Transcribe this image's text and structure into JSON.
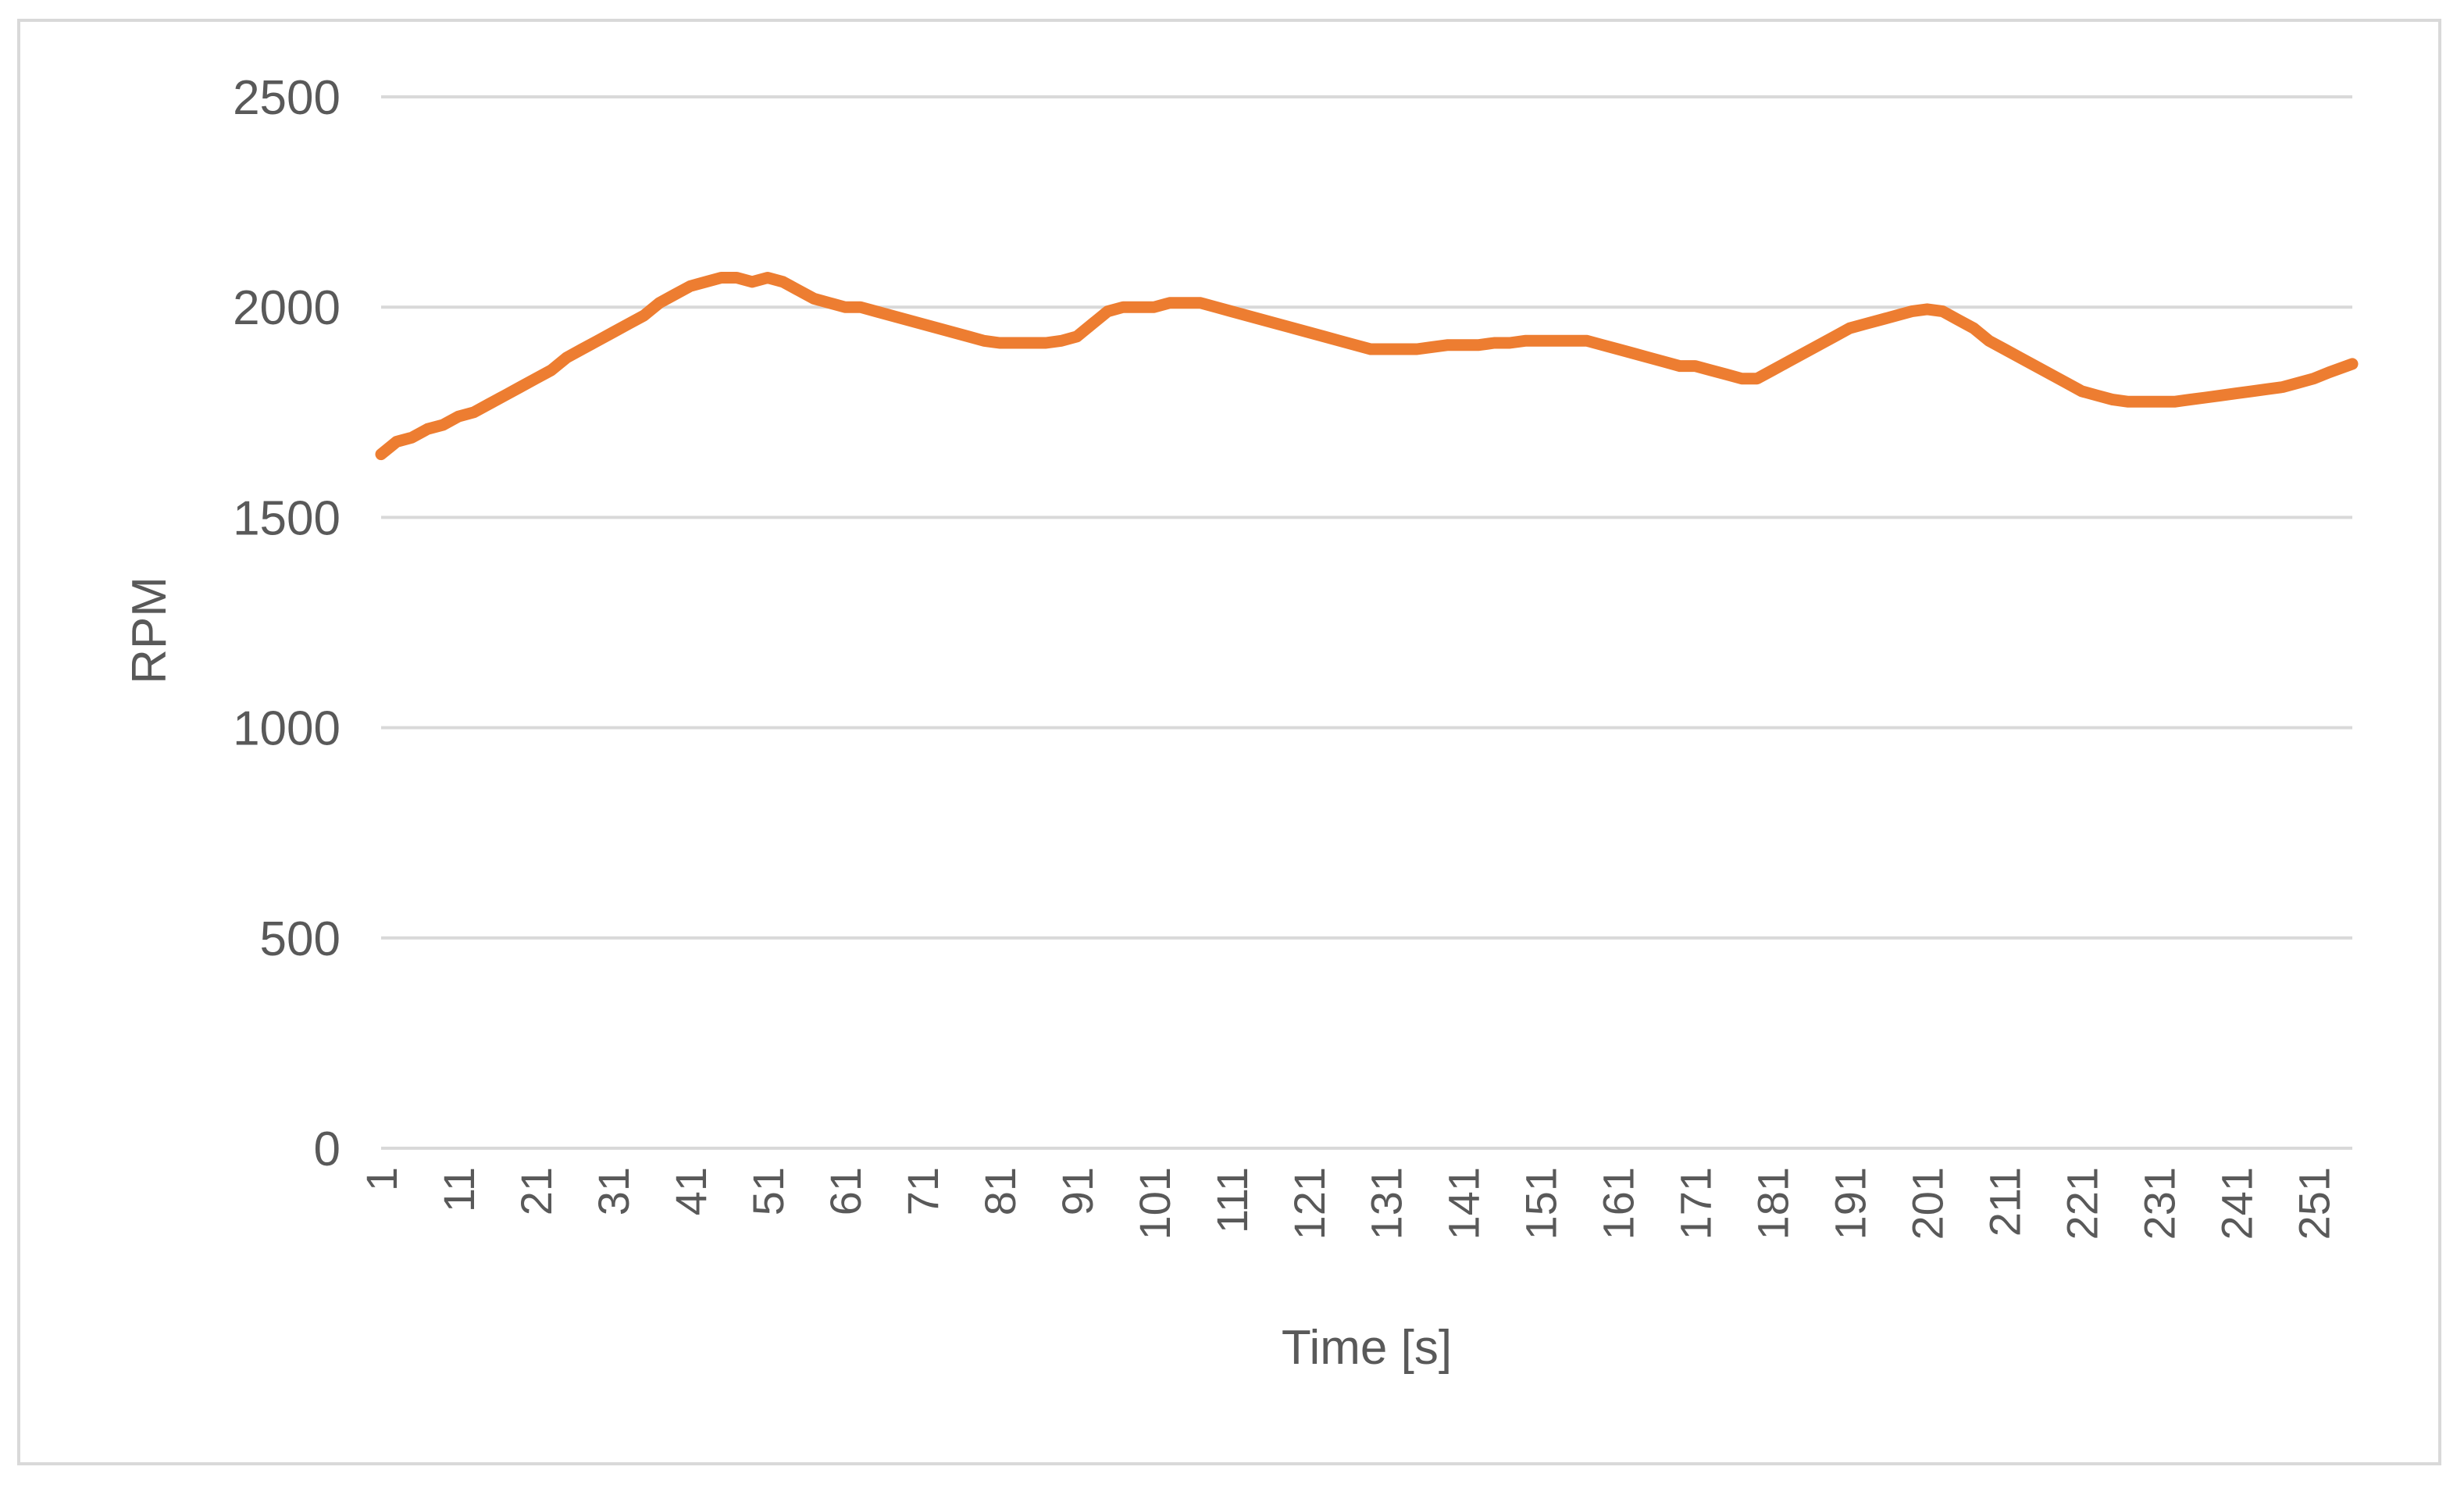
{
  "chart_data": {
    "type": "line",
    "title": "",
    "xlabel": "Time [s]",
    "ylabel": "RPM",
    "ylim": [
      0,
      2500
    ],
    "y_ticks": [
      "0",
      "500",
      "1000",
      "1500",
      "2000",
      "2500"
    ],
    "x_ticks": [
      "1",
      "11",
      "21",
      "31",
      "41",
      "51",
      "61",
      "71",
      "81",
      "91",
      "101",
      "111",
      "121",
      "131",
      "141",
      "151",
      "161",
      "171",
      "181",
      "191",
      "201",
      "211",
      "221",
      "231",
      "241",
      "251"
    ],
    "x_range": [
      1,
      256
    ],
    "grid": true,
    "legend": "none",
    "series": [
      {
        "color": "#ED7D31",
        "x": [
          1,
          3,
          5,
          7,
          9,
          11,
          13,
          15,
          17,
          19,
          21,
          23,
          25,
          27,
          29,
          31,
          33,
          35,
          37,
          39,
          41,
          43,
          45,
          47,
          49,
          51,
          53,
          55,
          57,
          59,
          61,
          63,
          65,
          67,
          69,
          71,
          73,
          75,
          77,
          79,
          81,
          83,
          85,
          87,
          89,
          91,
          93,
          95,
          97,
          99,
          101,
          103,
          105,
          107,
          109,
          111,
          113,
          115,
          117,
          119,
          121,
          123,
          125,
          127,
          129,
          131,
          133,
          135,
          137,
          139,
          141,
          143,
          145,
          147,
          149,
          151,
          153,
          155,
          157,
          159,
          161,
          163,
          165,
          167,
          169,
          171,
          173,
          175,
          177,
          179,
          181,
          183,
          185,
          187,
          189,
          191,
          193,
          195,
          197,
          199,
          201,
          203,
          205,
          207,
          209,
          211,
          213,
          215,
          217,
          219,
          221,
          223,
          225,
          227,
          229,
          231,
          233,
          235,
          237,
          239,
          241,
          243,
          245,
          247,
          249,
          251,
          253,
          256
        ],
        "values": [
          1650,
          1680,
          1690,
          1710,
          1720,
          1740,
          1750,
          1770,
          1790,
          1810,
          1830,
          1850,
          1880,
          1900,
          1920,
          1940,
          1960,
          1980,
          2010,
          2030,
          2050,
          2060,
          2070,
          2070,
          2060,
          2070,
          2060,
          2040,
          2020,
          2010,
          2000,
          2000,
          1990,
          1980,
          1970,
          1960,
          1950,
          1940,
          1930,
          1920,
          1915,
          1915,
          1915,
          1915,
          1920,
          1930,
          1960,
          1990,
          2000,
          2000,
          2000,
          2010,
          2010,
          2010,
          2000,
          1990,
          1980,
          1970,
          1960,
          1950,
          1940,
          1930,
          1920,
          1910,
          1900,
          1900,
          1900,
          1900,
          1905,
          1910,
          1910,
          1910,
          1915,
          1915,
          1920,
          1920,
          1920,
          1920,
          1920,
          1910,
          1900,
          1890,
          1880,
          1870,
          1860,
          1860,
          1850,
          1840,
          1830,
          1830,
          1850,
          1870,
          1890,
          1910,
          1930,
          1950,
          1960,
          1970,
          1980,
          1990,
          1995,
          1990,
          1970,
          1950,
          1920,
          1900,
          1880,
          1860,
          1840,
          1820,
          1800,
          1790,
          1780,
          1775,
          1775,
          1775,
          1775,
          1780,
          1785,
          1790,
          1795,
          1800,
          1805,
          1810,
          1820,
          1830,
          1845,
          1865
        ]
      }
    ]
  }
}
